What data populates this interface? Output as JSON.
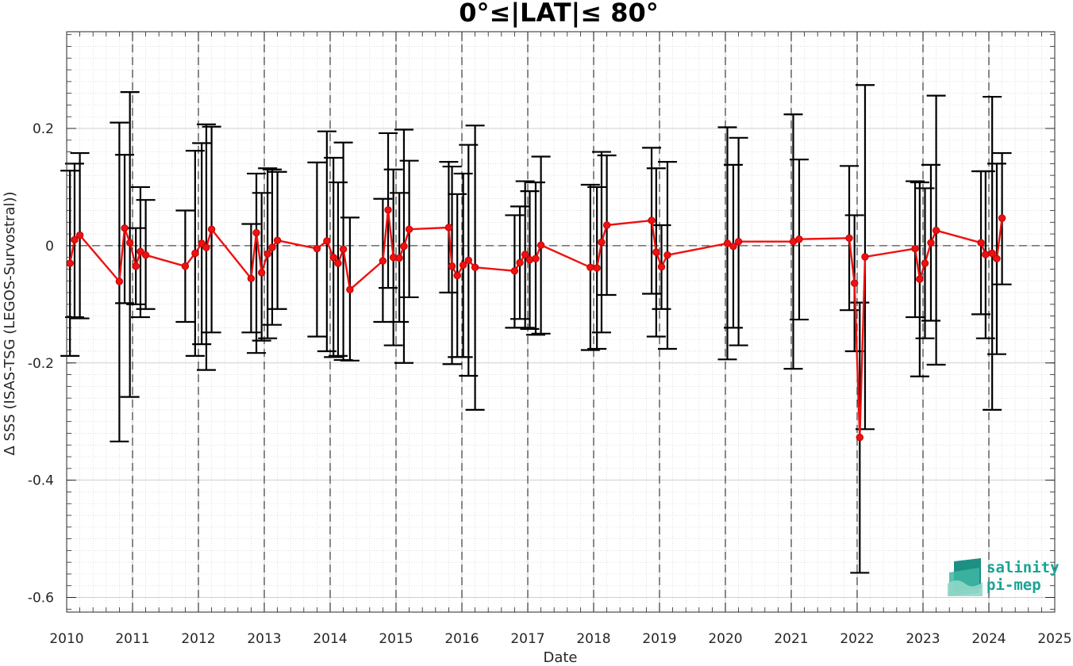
{
  "chart_data": {
    "type": "line",
    "title": "0°≤|LAT|≤ 80°",
    "xlabel": "Date",
    "ylabel": "Δ SSS (ISAS-TSG (LEGOS-Survostral))",
    "xlim": [
      2010,
      2025
    ],
    "ylim": [
      -0.625,
      0.365
    ],
    "x_ticks": [
      "2010",
      "2011",
      "2012",
      "2013",
      "2014",
      "2015",
      "2016",
      "2017",
      "2018",
      "2019",
      "2020",
      "2021",
      "2022",
      "2023",
      "2024",
      "2025"
    ],
    "y_ticks": [
      {
        "value": -0.6,
        "label": "-0.6"
      },
      {
        "value": -0.4,
        "label": "-0.4"
      },
      {
        "value": -0.2,
        "label": "-0.2"
      },
      {
        "value": 0,
        "label": "0"
      },
      {
        "value": 0.2,
        "label": "0.2"
      }
    ],
    "zero_line": 0,
    "year_lines": [
      2011,
      2012,
      2013,
      2014,
      2015,
      2016,
      2017,
      2018,
      2019,
      2020,
      2021,
      2022,
      2023,
      2024
    ],
    "grid": true,
    "legend": "none",
    "colors": {
      "line": "#ee1111",
      "errorbar": "#000000",
      "reference": "#262626"
    },
    "series": [
      {
        "points": [
          {
            "x": 2010.05,
            "y": -0.03,
            "lo": -0.188,
            "hi": 0.128
          },
          {
            "x": 2010.12,
            "y": 0.01,
            "lo": -0.122,
            "hi": 0.14
          },
          {
            "x": 2010.2,
            "y": 0.018,
            "lo": -0.124,
            "hi": 0.158
          },
          {
            "x": 2010.8,
            "y": -0.061,
            "lo": -0.334,
            "hi": 0.21
          },
          {
            "x": 2010.88,
            "y": 0.03,
            "lo": -0.098,
            "hi": 0.155
          },
          {
            "x": 2010.96,
            "y": 0.005,
            "lo": -0.258,
            "hi": 0.262
          },
          {
            "x": 2011.05,
            "y": -0.035,
            "lo": -0.1,
            "hi": 0.03
          },
          {
            "x": 2011.12,
            "y": -0.01,
            "lo": -0.122,
            "hi": 0.1
          },
          {
            "x": 2011.2,
            "y": -0.016,
            "lo": -0.108,
            "hi": 0.078
          },
          {
            "x": 2011.8,
            "y": -0.035,
            "lo": -0.13,
            "hi": 0.06
          },
          {
            "x": 2011.95,
            "y": -0.013,
            "lo": -0.188,
            "hi": 0.162
          },
          {
            "x": 2012.05,
            "y": 0.004,
            "lo": -0.168,
            "hi": 0.175
          },
          {
            "x": 2012.12,
            "y": -0.003,
            "lo": -0.212,
            "hi": 0.207
          },
          {
            "x": 2012.2,
            "y": 0.028,
            "lo": -0.148,
            "hi": 0.203
          },
          {
            "x": 2012.8,
            "y": -0.056,
            "lo": -0.148,
            "hi": 0.037
          },
          {
            "x": 2012.88,
            "y": 0.022,
            "lo": -0.183,
            "hi": 0.123
          },
          {
            "x": 2012.96,
            "y": -0.046,
            "lo": -0.162,
            "hi": 0.09
          },
          {
            "x": 2013.05,
            "y": -0.014,
            "lo": -0.158,
            "hi": 0.132
          },
          {
            "x": 2013.12,
            "y": -0.003,
            "lo": -0.135,
            "hi": 0.13
          },
          {
            "x": 2013.2,
            "y": 0.009,
            "lo": -0.108,
            "hi": 0.126
          },
          {
            "x": 2013.8,
            "y": -0.005,
            "lo": -0.155,
            "hi": 0.142
          },
          {
            "x": 2013.95,
            "y": 0.008,
            "lo": -0.18,
            "hi": 0.195
          },
          {
            "x": 2014.05,
            "y": -0.02,
            "lo": -0.19,
            "hi": 0.15
          },
          {
            "x": 2014.12,
            "y": -0.03,
            "lo": -0.188,
            "hi": 0.108
          },
          {
            "x": 2014.2,
            "y": -0.006,
            "lo": -0.195,
            "hi": 0.176
          },
          {
            "x": 2014.3,
            "y": -0.075,
            "lo": -0.196,
            "hi": 0.048
          },
          {
            "x": 2014.8,
            "y": -0.026,
            "lo": -0.13,
            "hi": 0.08
          },
          {
            "x": 2014.88,
            "y": 0.061,
            "lo": -0.072,
            "hi": 0.192
          },
          {
            "x": 2014.96,
            "y": -0.02,
            "lo": -0.17,
            "hi": 0.13
          },
          {
            "x": 2015.05,
            "y": -0.021,
            "lo": -0.13,
            "hi": 0.09
          },
          {
            "x": 2015.12,
            "y": -0.001,
            "lo": -0.2,
            "hi": 0.198
          },
          {
            "x": 2015.2,
            "y": 0.028,
            "lo": -0.088,
            "hi": 0.145
          },
          {
            "x": 2015.8,
            "y": 0.031,
            "lo": -0.08,
            "hi": 0.143
          },
          {
            "x": 2015.85,
            "y": -0.035,
            "lo": -0.202,
            "hi": 0.135
          },
          {
            "x": 2015.93,
            "y": -0.051,
            "lo": -0.19,
            "hi": 0.088
          },
          {
            "x": 2016.02,
            "y": -0.033,
            "lo": -0.19,
            "hi": 0.123
          },
          {
            "x": 2016.1,
            "y": -0.025,
            "lo": -0.222,
            "hi": 0.172
          },
          {
            "x": 2016.2,
            "y": -0.037,
            "lo": -0.28,
            "hi": 0.205
          },
          {
            "x": 2016.8,
            "y": -0.043,
            "lo": -0.14,
            "hi": 0.052
          },
          {
            "x": 2016.88,
            "y": -0.029,
            "lo": -0.125,
            "hi": 0.067
          },
          {
            "x": 2016.96,
            "y": -0.015,
            "lo": -0.14,
            "hi": 0.11
          },
          {
            "x": 2017.03,
            "y": -0.024,
            "lo": -0.142,
            "hi": 0.093
          },
          {
            "x": 2017.12,
            "y": -0.022,
            "lo": -0.152,
            "hi": 0.108
          },
          {
            "x": 2017.2,
            "y": 0.001,
            "lo": -0.15,
            "hi": 0.152
          },
          {
            "x": 2017.95,
            "y": -0.037,
            "lo": -0.178,
            "hi": 0.104
          },
          {
            "x": 2018.05,
            "y": -0.038,
            "lo": -0.176,
            "hi": 0.1
          },
          {
            "x": 2018.12,
            "y": 0.006,
            "lo": -0.148,
            "hi": 0.16
          },
          {
            "x": 2018.2,
            "y": 0.035,
            "lo": -0.084,
            "hi": 0.154
          },
          {
            "x": 2018.88,
            "y": 0.043,
            "lo": -0.082,
            "hi": 0.167
          },
          {
            "x": 2018.95,
            "y": -0.011,
            "lo": -0.155,
            "hi": 0.132
          },
          {
            "x": 2019.03,
            "y": -0.036,
            "lo": -0.108,
            "hi": 0.035
          },
          {
            "x": 2019.12,
            "y": -0.016,
            "lo": -0.176,
            "hi": 0.143
          },
          {
            "x": 2020.03,
            "y": 0.004,
            "lo": -0.194,
            "hi": 0.202
          },
          {
            "x": 2020.12,
            "y": -0.001,
            "lo": -0.14,
            "hi": 0.138
          },
          {
            "x": 2020.2,
            "y": 0.007,
            "lo": -0.17,
            "hi": 0.184
          },
          {
            "x": 2021.03,
            "y": 0.007,
            "lo": -0.21,
            "hi": 0.224
          },
          {
            "x": 2021.12,
            "y": 0.011,
            "lo": -0.126,
            "hi": 0.147
          },
          {
            "x": 2021.88,
            "y": 0.013,
            "lo": -0.11,
            "hi": 0.136
          },
          {
            "x": 2021.96,
            "y": -0.064,
            "lo": -0.18,
            "hi": 0.052
          },
          {
            "x": 2022.04,
            "y": -0.327,
            "lo": -0.558,
            "hi": -0.097
          },
          {
            "x": 2022.12,
            "y": -0.019,
            "lo": -0.313,
            "hi": 0.274
          },
          {
            "x": 2022.88,
            "y": -0.005,
            "lo": -0.122,
            "hi": 0.11
          },
          {
            "x": 2022.95,
            "y": -0.057,
            "lo": -0.223,
            "hi": 0.108
          },
          {
            "x": 2023.03,
            "y": -0.03,
            "lo": -0.158,
            "hi": 0.098
          },
          {
            "x": 2023.12,
            "y": 0.005,
            "lo": -0.128,
            "hi": 0.138
          },
          {
            "x": 2023.2,
            "y": 0.026,
            "lo": -0.203,
            "hi": 0.256
          },
          {
            "x": 2023.88,
            "y": 0.005,
            "lo": -0.117,
            "hi": 0.127
          },
          {
            "x": 2023.95,
            "y": -0.015,
            "lo": -0.158,
            "hi": 0.127
          },
          {
            "x": 2024.05,
            "y": -0.013,
            "lo": -0.28,
            "hi": 0.254
          },
          {
            "x": 2024.12,
            "y": -0.022,
            "lo": -0.185,
            "hi": 0.14
          },
          {
            "x": 2024.2,
            "y": 0.047,
            "lo": -0.066,
            "hi": 0.158
          }
        ]
      }
    ]
  },
  "logo": {
    "line1": "salinity",
    "line2": "pi-mep"
  }
}
